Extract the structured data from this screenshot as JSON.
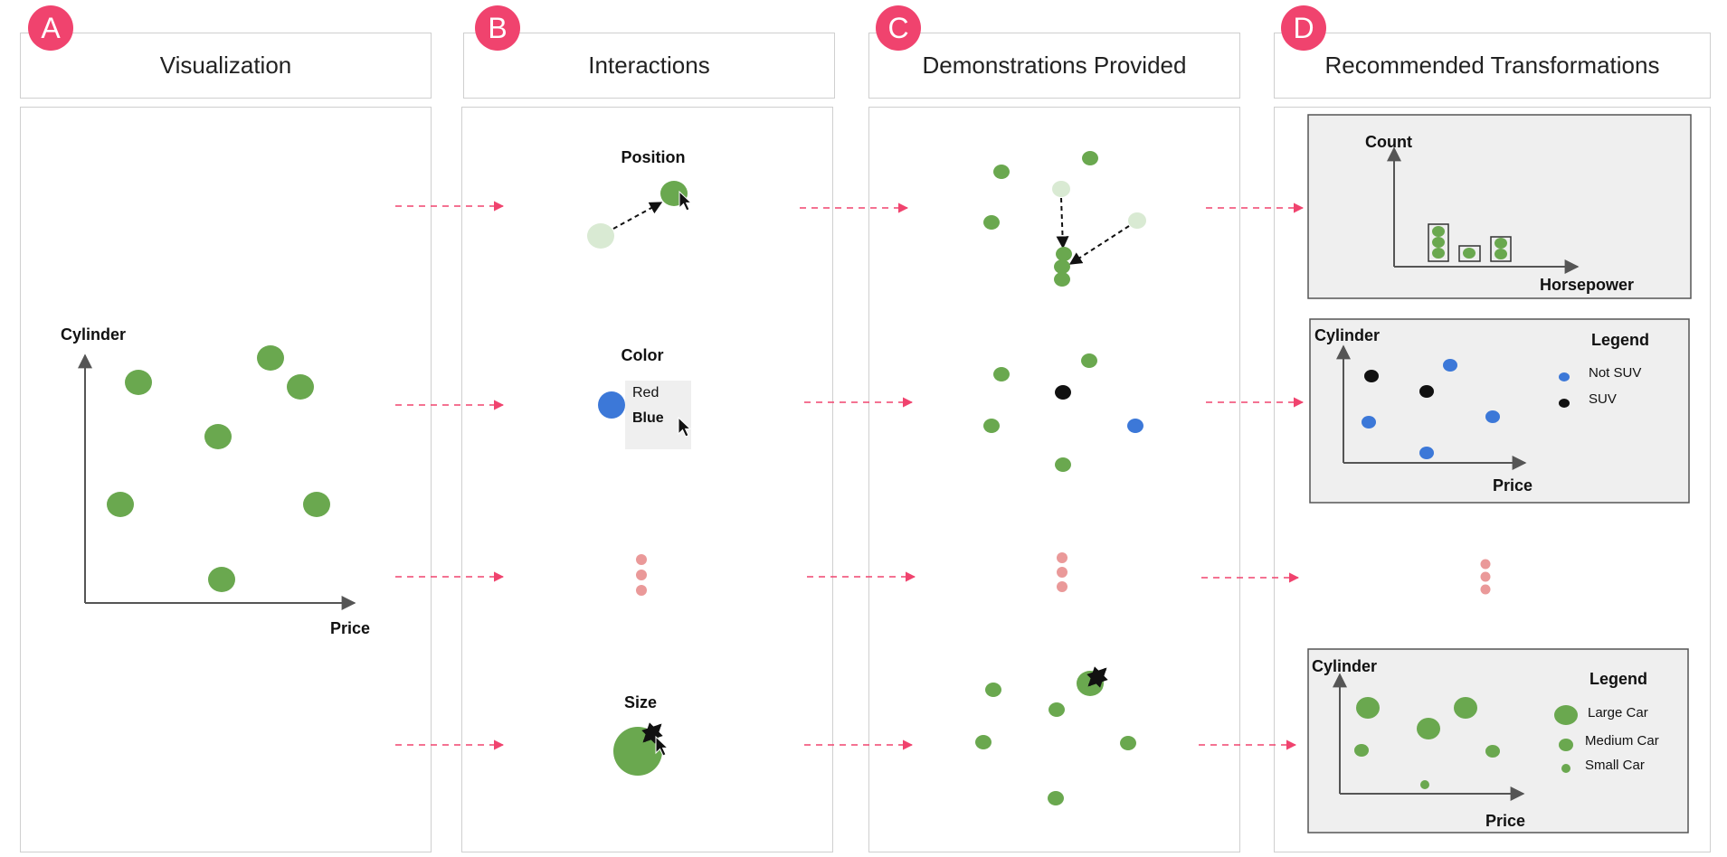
{
  "columns": [
    {
      "badge": "A",
      "title": "Visualization"
    },
    {
      "badge": "B",
      "title": "Interactions"
    },
    {
      "badge": "C",
      "title": "Demonstrations Provided"
    },
    {
      "badge": "D",
      "title": "Recommended Transformations"
    }
  ],
  "visualization": {
    "y_axis": "Cylinder",
    "x_axis": "Price"
  },
  "interactions": {
    "position": "Position",
    "color": "Color",
    "color_option_red": "Red",
    "color_option_blue": "Blue",
    "size": "Size"
  },
  "recommendations": {
    "histogram": {
      "y_axis": "Count",
      "x_axis": "Horsepower"
    },
    "color_scatter": {
      "y_axis": "Cylinder",
      "x_axis": "Price",
      "legend_title": "Legend",
      "legend_items": [
        "Not SUV",
        "SUV"
      ]
    },
    "size_scatter": {
      "y_axis": "Cylinder",
      "x_axis": "Price",
      "legend_title": "Legend",
      "legend_items": [
        "Large Car",
        "Medium Car",
        "Small Car"
      ]
    }
  },
  "colors": {
    "accent": "#f0436e",
    "green": "#6aa84f",
    "blue": "#3c78d8",
    "black": "#111111",
    "light_green": "#d9ead3",
    "pink_dot": "#ea9999",
    "panel_gray": "#efefef"
  }
}
